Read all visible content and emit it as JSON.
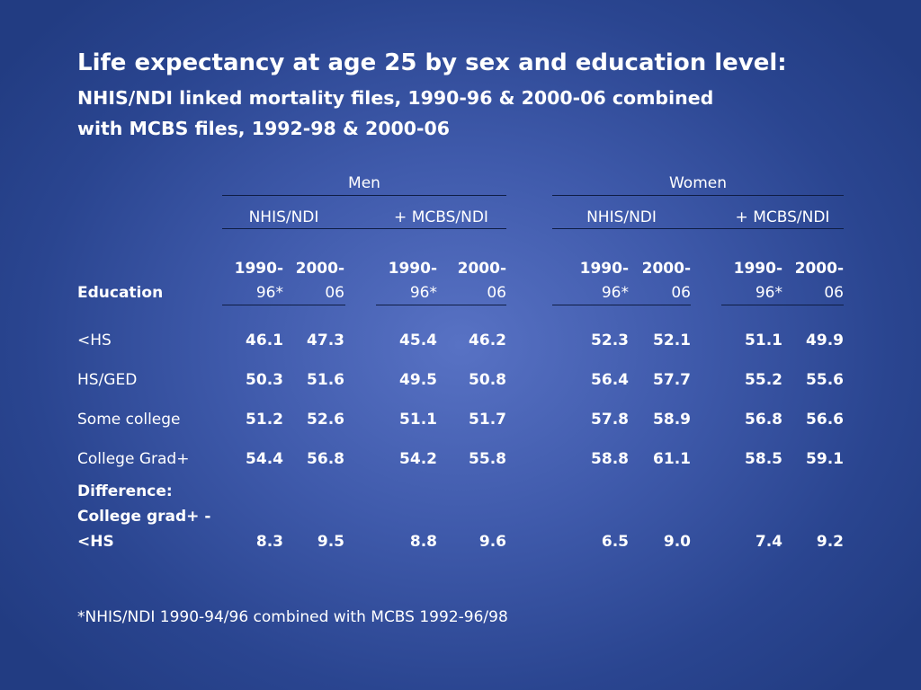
{
  "slide": {
    "title": "Life expectancy at age 25 by sex and education level:",
    "subtitle_line1": "NHIS/NDI linked mortality files, 1990-96 & 2000-06 combined",
    "subtitle_line2": "with MCBS files, 1992-98 & 2000-06",
    "footnote": "*NHIS/NDI 1990-94/96 combined with MCBS 1992-96/98"
  },
  "table": {
    "groups": [
      "Men",
      "Women"
    ],
    "subgroups": [
      "NHIS/NDI",
      "+ MCBS/NDI",
      "NHIS/NDI",
      "+ MCBS/NDI"
    ],
    "education_header": "Education",
    "period_headers": [
      {
        "line1": "1990-",
        "line2": "96*"
      },
      {
        "line1": "2000-",
        "line2": "06"
      },
      {
        "line1": "1990-",
        "line2": "96*"
      },
      {
        "line1": "2000-",
        "line2": "06"
      },
      {
        "line1": "1990-",
        "line2": "96*"
      },
      {
        "line1": "2000-",
        "line2": "06"
      },
      {
        "line1": "1990-",
        "line2": "96*"
      },
      {
        "line1": "2000-",
        "line2": "06"
      }
    ],
    "rows": [
      {
        "label": "<HS",
        "values": [
          "46.1",
          "47.3",
          "45.4",
          "46.2",
          "52.3",
          "52.1",
          "51.1",
          "49.9"
        ]
      },
      {
        "label": "HS/GED",
        "values": [
          "50.3",
          "51.6",
          "49.5",
          "50.8",
          "56.4",
          "57.7",
          "55.2",
          "55.6"
        ]
      },
      {
        "label": "Some college",
        "values": [
          "51.2",
          "52.6",
          "51.1",
          "51.7",
          "57.8",
          "58.9",
          "56.8",
          "56.6"
        ]
      },
      {
        "label": "College Grad+",
        "values": [
          "54.4",
          "56.8",
          "54.2",
          "55.8",
          "58.8",
          "61.1",
          "58.5",
          "59.1"
        ]
      }
    ],
    "difference_row": {
      "label_line1": "Difference:",
      "label_line2": "College grad+ -",
      "label_line3": "<HS",
      "values": [
        "8.3",
        "9.5",
        "8.8",
        "9.6",
        "6.5",
        "9.0",
        "7.4",
        "9.2"
      ]
    }
  }
}
